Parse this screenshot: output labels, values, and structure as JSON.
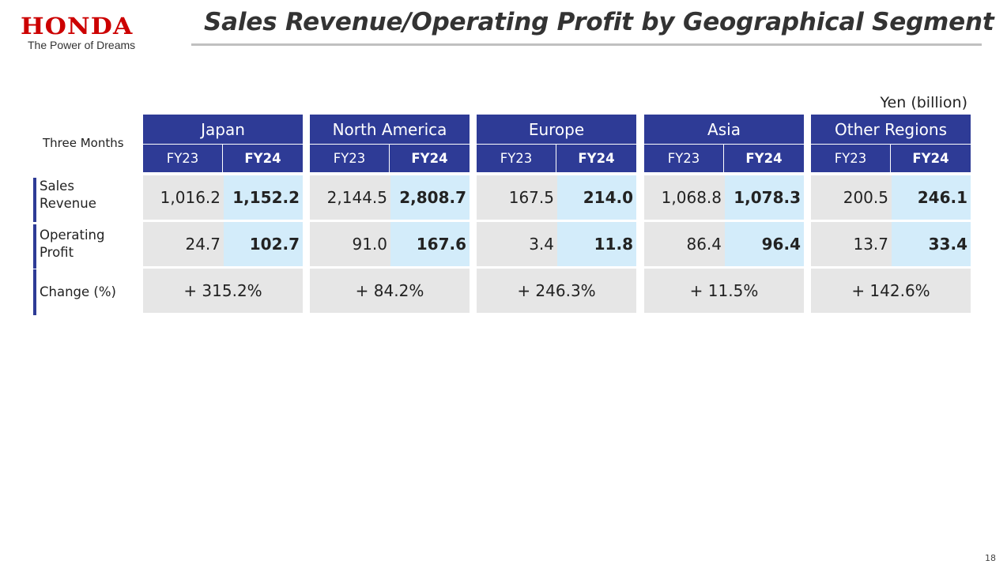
{
  "logo": {
    "word": "HONDA",
    "tagline": "The Power of Dreams"
  },
  "title": "Sales Revenue/Operating Profit by Geographical Segment",
  "unit": "Yen (billion)",
  "row_labels": {
    "period": "Three Months",
    "revenue_1": "Sales",
    "revenue_2": "Revenue",
    "profit_1": "Operating",
    "profit_2": "Profit",
    "change": "Change (%)"
  },
  "regions": [
    {
      "name": "Japan",
      "fy_a": "FY23",
      "fy_b": "FY24",
      "rev_a": "1,016.2",
      "rev_b": "1,152.2",
      "prof_a": "24.7",
      "prof_b": "102.7",
      "change": "+ 315.2%"
    },
    {
      "name": "North America",
      "fy_a": "FY23",
      "fy_b": "FY24",
      "rev_a": "2,144.5",
      "rev_b": "2,808.7",
      "prof_a": "91.0",
      "prof_b": "167.6",
      "change": "+ 84.2%"
    },
    {
      "name": "Europe",
      "fy_a": "FY23",
      "fy_b": "FY24",
      "rev_a": "167.5",
      "rev_b": "214.0",
      "prof_a": "3.4",
      "prof_b": "11.8",
      "change": "+ 246.3%"
    },
    {
      "name": "Asia",
      "fy_a": "FY23",
      "fy_b": "FY24",
      "rev_a": "1,068.8",
      "rev_b": "1,078.3",
      "prof_a": "86.4",
      "prof_b": "96.4",
      "change": "+ 11.5%"
    },
    {
      "name": "Other Regions",
      "fy_a": "FY23",
      "fy_b": "FY24",
      "rev_a": "200.5",
      "rev_b": "246.1",
      "prof_a": "13.7",
      "prof_b": "33.4",
      "change": "+ 142.6%"
    }
  ],
  "page_number": "18",
  "colors": {
    "header_blue": "#2e3b96",
    "highlight": "#d3ecfa",
    "cell_gray": "#e6e6e6",
    "logo_red": "#cc0000"
  }
}
